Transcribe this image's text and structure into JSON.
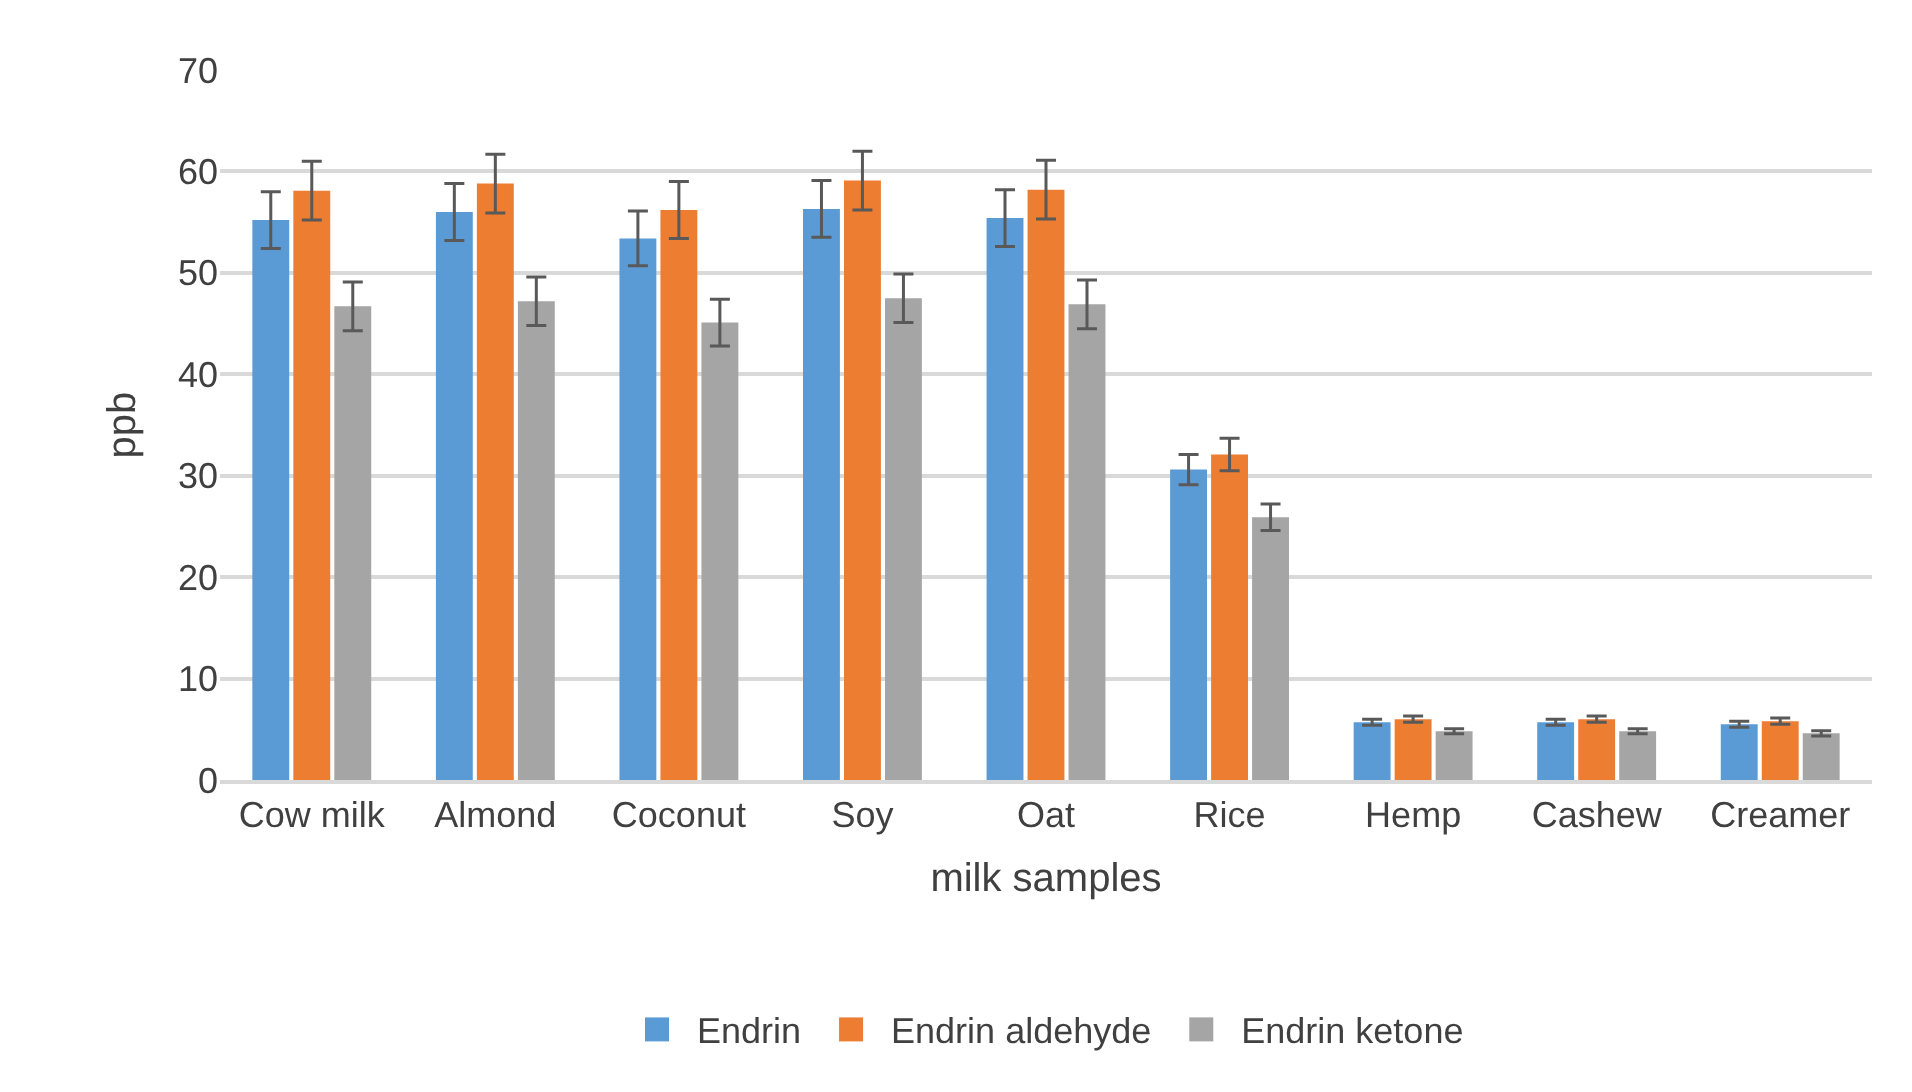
{
  "chart_data": {
    "type": "bar",
    "xlabel": "milk samples",
    "ylabel": "ppb",
    "categories": [
      "Cow milk",
      "Almond",
      "Coconut",
      "Soy",
      "Oat",
      "Rice",
      "Hemp",
      "Cashew",
      "Creamer"
    ],
    "series": [
      {
        "name": "Endrin",
        "color": "#5b9bd5",
        "values": [
          55.2,
          56.0,
          53.4,
          56.3,
          55.4,
          30.6,
          5.7,
          5.7,
          5.5
        ],
        "errors": [
          2.8,
          2.8,
          2.7,
          2.8,
          2.8,
          1.5,
          0.3,
          0.3,
          0.3
        ]
      },
      {
        "name": "Endrin aldehyde",
        "color": "#ed7d31",
        "values": [
          58.1,
          58.8,
          56.2,
          59.1,
          58.2,
          32.1,
          6.0,
          6.0,
          5.8
        ],
        "errors": [
          2.9,
          2.9,
          2.8,
          2.9,
          2.9,
          1.6,
          0.3,
          0.3,
          0.3
        ]
      },
      {
        "name": "Endrin ketone",
        "color": "#a5a5a5",
        "values": [
          46.7,
          47.2,
          45.1,
          47.5,
          46.9,
          25.9,
          4.8,
          4.8,
          4.6
        ],
        "errors": [
          2.4,
          2.4,
          2.3,
          2.4,
          2.4,
          1.3,
          0.25,
          0.25,
          0.25
        ]
      }
    ],
    "ylim": [
      0,
      70
    ],
    "yticks": [
      0,
      10,
      20,
      30,
      40,
      50,
      60,
      70
    ],
    "grid": "y",
    "legend": "bottom"
  }
}
